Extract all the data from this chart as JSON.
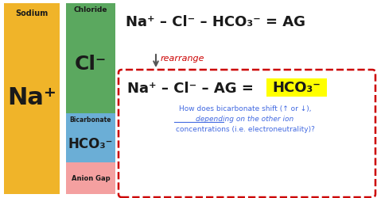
{
  "background_color": "#ffffff",
  "sodium_color": "#F0B429",
  "chloride_color": "#5BA85F",
  "bicarb_color": "#6BAED6",
  "anion_color": "#F4A0A0",
  "sodium_label": "Sodium",
  "sodium_symbol": "Na⁺",
  "chloride_label": "Chloride",
  "chloride_symbol": "Cl⁻",
  "bicarb_label": "Bicarbonate",
  "bicarb_symbol": "HCO₃⁻",
  "anion_label": "Anion Gap",
  "eq1": "Na⁺ – Cl⁻ – HCO₃⁻ = AG",
  "eq2_left": "Na⁺ – Cl⁻ – AG = ",
  "eq2_right": "HCO₃⁻",
  "q_line1": "How does bicarbonate shift (↑ or ↓),",
  "q_line2a": "depending",
  "q_line2b": " on the other ion",
  "q_line3": "concentrations (i.e. electroneutrality)?",
  "highlight_color": "#FFFF00",
  "box_color": "#CC0000",
  "arrow_color": "#555555",
  "rearrange_color": "#CC0000",
  "eq1_color": "#1a1a1a",
  "eq2_color": "#1a1a1a",
  "question_color": "#4169E1"
}
